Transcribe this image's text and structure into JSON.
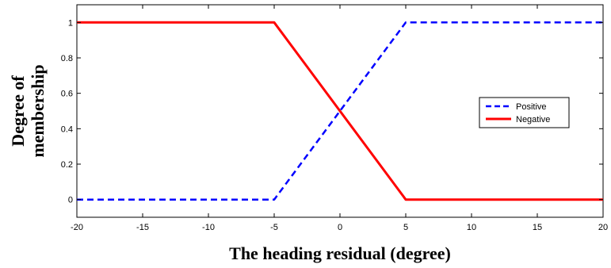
{
  "chart_data": {
    "type": "line",
    "title": "",
    "xlabel": "The heading residual (degree)",
    "ylabel_lines": [
      "Degree of",
      "membership"
    ],
    "xlim": [
      -20,
      20
    ],
    "ylim": [
      -0.1,
      1.1
    ],
    "xticks": [
      -20,
      -15,
      -10,
      -5,
      0,
      5,
      10,
      15,
      20
    ],
    "yticks": [
      0,
      0.2,
      0.4,
      0.6,
      0.8,
      1
    ],
    "ytick_labels": [
      "0",
      "0.2",
      "0.4",
      "0.6",
      "0.8",
      "1"
    ],
    "grid": false,
    "legend_position": "right",
    "series": [
      {
        "name": "Positive",
        "color": "#0000ff",
        "style": "dashed",
        "x": [
          -20,
          -5,
          5,
          20
        ],
        "y": [
          0,
          0,
          1,
          1
        ]
      },
      {
        "name": "Negative",
        "color": "#ff0000",
        "style": "solid",
        "x": [
          -20,
          -5,
          5,
          20
        ],
        "y": [
          1,
          1,
          0,
          0
        ]
      }
    ]
  }
}
